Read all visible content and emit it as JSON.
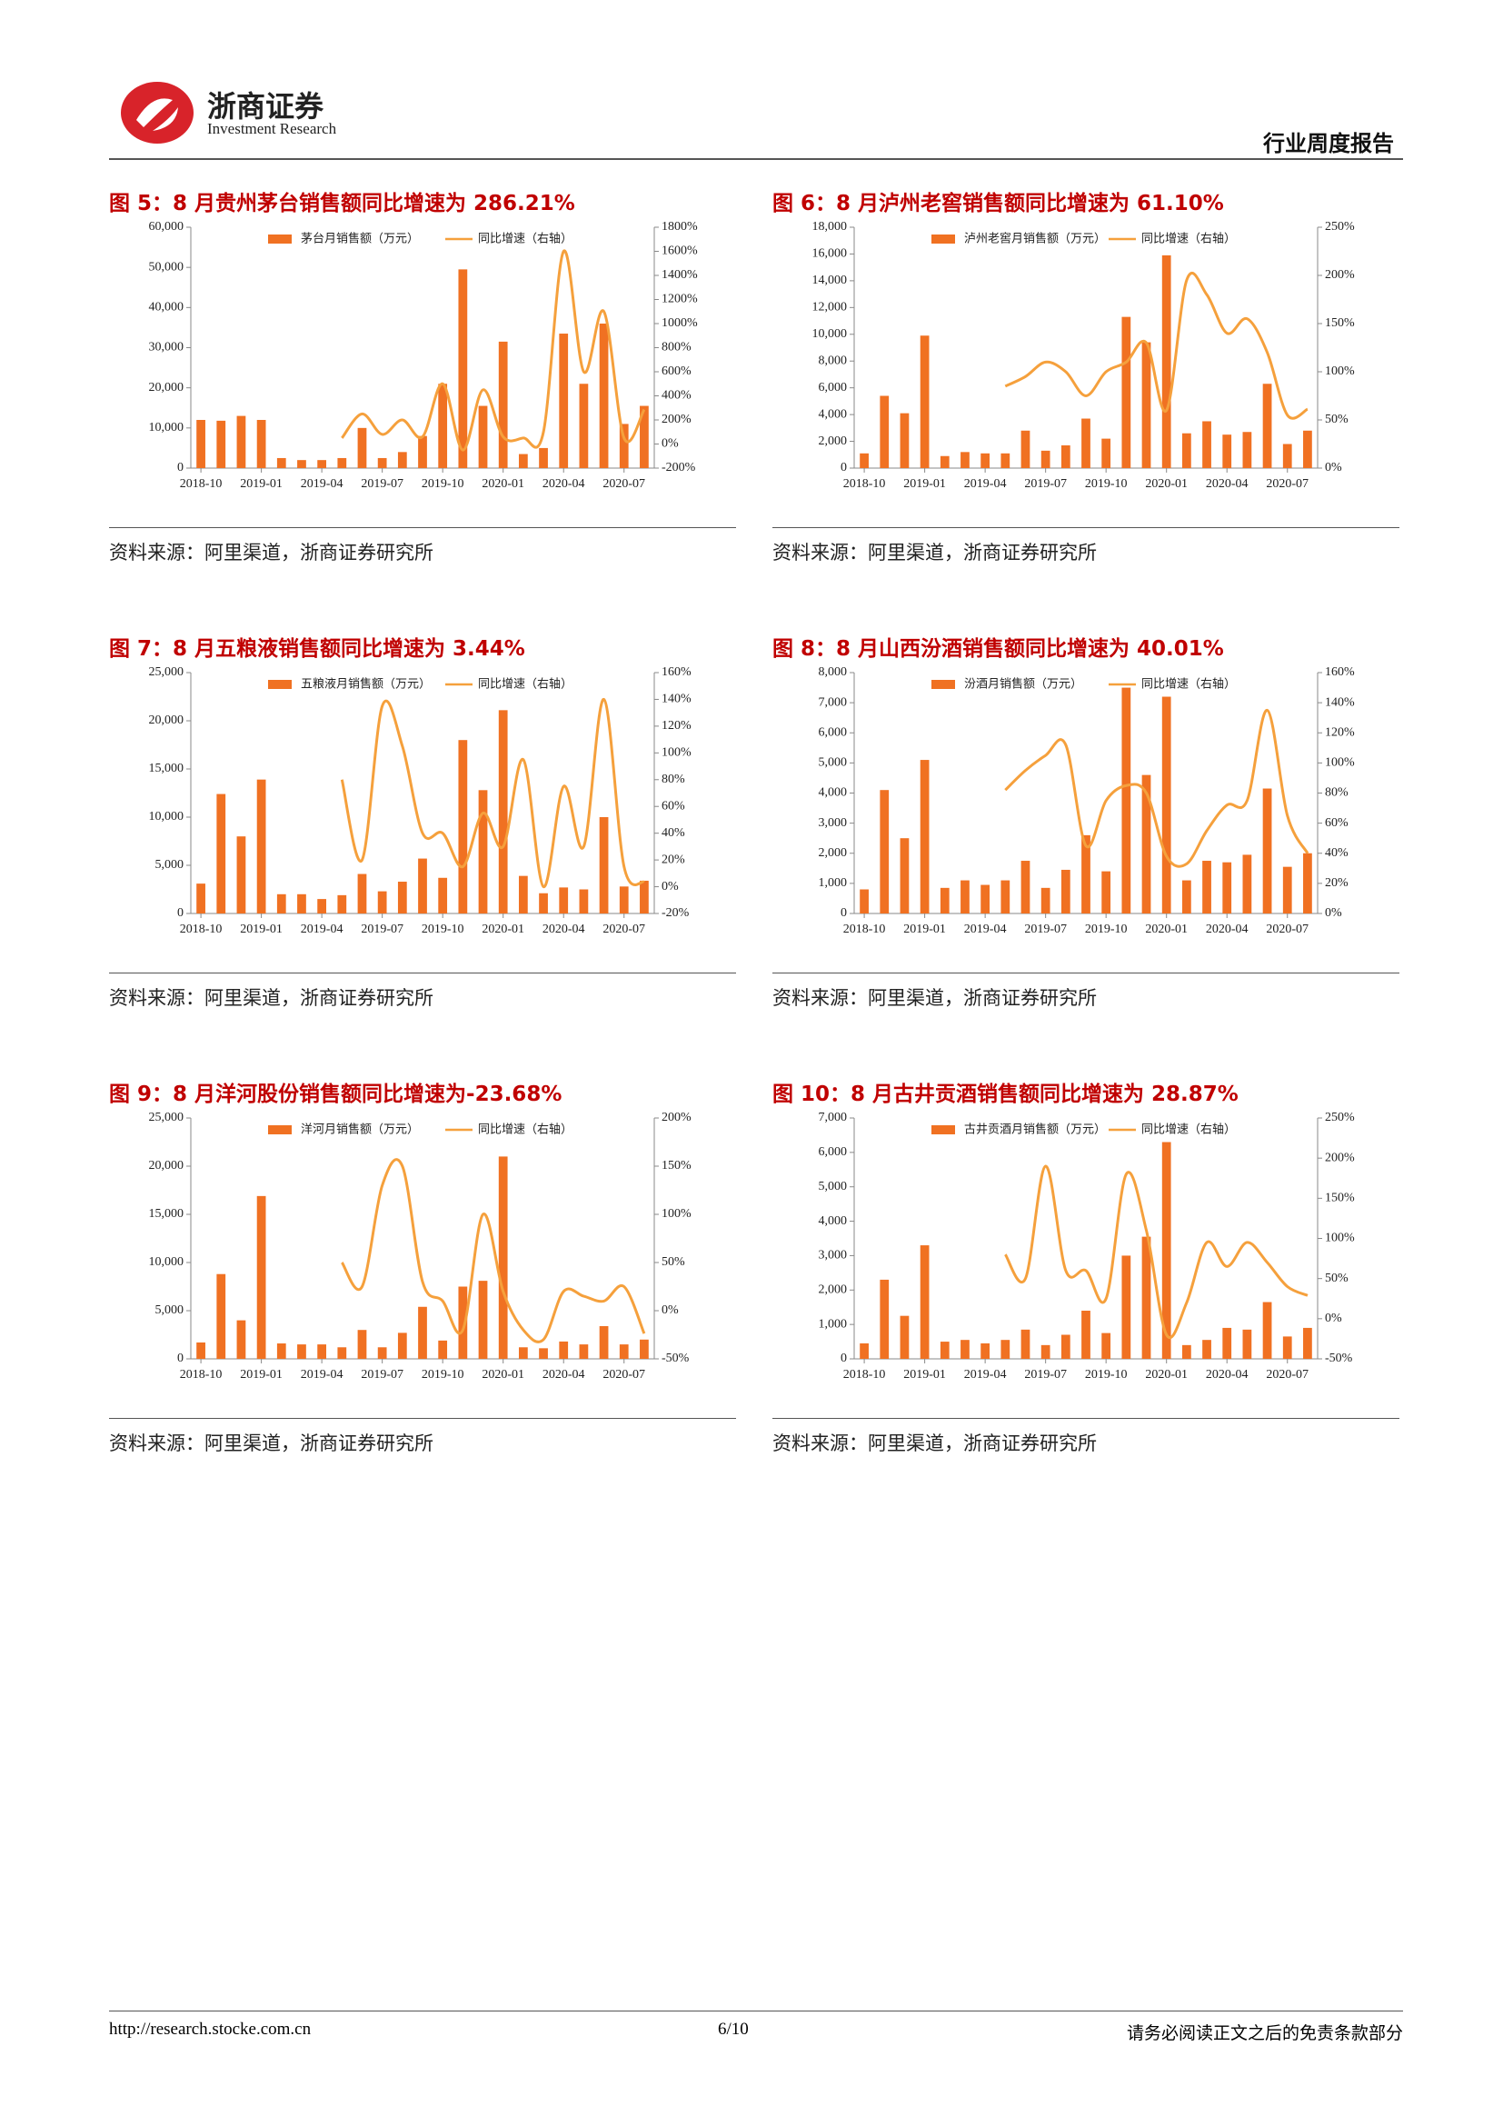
{
  "header": {
    "company": "浙商证券",
    "company_en": "Investment Research",
    "report_type": "行业周度报告"
  },
  "footer": {
    "url": "http://research.stocke.com.cn",
    "page": "6/10",
    "disclaimer": "请务必阅读正文之后的免责条款部分"
  },
  "chart_data": [
    {
      "type": "bar",
      "title": "图 5：8 月贵州茅台销售额同比增速为 286.21%",
      "source": "资料来源：阿里渠道，浙商证券研究所",
      "categories": [
        "2018-10",
        null,
        null,
        "2019-01",
        null,
        null,
        "2019-04",
        null,
        null,
        "2019-07",
        null,
        null,
        "2019-10",
        null,
        null,
        "2020-01",
        null,
        null,
        "2020-04",
        null,
        null,
        "2020-07",
        null
      ],
      "series": [
        {
          "name": "茅台月销售额（万元）",
          "color": "#f07122",
          "values": [
            12000,
            11800,
            13000,
            12000,
            2500,
            2000,
            2000,
            2500,
            10000,
            2500,
            4000,
            8000,
            21000,
            49500,
            15500,
            31500,
            3500,
            5000,
            33500,
            21000,
            36000,
            11000,
            15500
          ]
        },
        {
          "name": "同比增速（右轴）",
          "color": "#f5a03c",
          "axis": "y2",
          "values": [
            null,
            null,
            null,
            null,
            null,
            null,
            null,
            50,
            250,
            80,
            200,
            60,
            500,
            -50,
            450,
            60,
            50,
            100,
            1600,
            600,
            1100,
            50,
            286.21
          ]
        }
      ],
      "ylim": [
        0,
        60000
      ],
      "yticks": [
        0,
        {
          "value": 10000,
          "label": "10,000"
        },
        {
          "value": 20000,
          "label": "20,000"
        },
        {
          "value": 30000,
          "label": "30,000"
        },
        {
          "value": 40000,
          "label": "40,000"
        },
        {
          "value": 50000,
          "label": "50,000"
        },
        {
          "value": 60000,
          "label": "60,000"
        }
      ],
      "y2lim": [
        -200,
        1800
      ],
      "y2ticks": [
        {
          "value": -200,
          "label": "-200%"
        },
        {
          "value": 0,
          "label": "0%"
        },
        {
          "value": 200,
          "label": "200%"
        },
        {
          "value": 400,
          "label": "400%"
        },
        {
          "value": 600,
          "label": "600%"
        },
        {
          "value": 800,
          "label": "800%"
        },
        {
          "value": 1000,
          "label": "1000%"
        },
        {
          "value": 1200,
          "label": "1200%"
        },
        {
          "value": 1400,
          "label": "1400%"
        },
        {
          "value": 1600,
          "label": "1600%"
        },
        {
          "value": 1800,
          "label": "1800%"
        }
      ]
    },
    {
      "type": "bar",
      "title": "图 6：8 月泸州老窖销售额同比增速为 61.10%",
      "source": "资料来源：阿里渠道，浙商证券研究所",
      "categories": [
        "2018-10",
        null,
        null,
        "2019-01",
        null,
        null,
        "2019-04",
        null,
        null,
        "2019-07",
        null,
        null,
        "2019-10",
        null,
        null,
        "2020-01",
        null,
        null,
        "2020-04",
        null,
        null,
        "2020-07",
        null
      ],
      "series": [
        {
          "name": "泸州老窖月销售额（万元）",
          "color": "#f07122",
          "values": [
            1100,
            5400,
            4100,
            9900,
            900,
            1200,
            1100,
            1100,
            2800,
            1300,
            1700,
            3700,
            2200,
            11300,
            9400,
            15900,
            2600,
            3500,
            2500,
            2700,
            6300,
            1800,
            2800
          ]
        },
        {
          "name": "同比增速（右轴）",
          "color": "#f5a03c",
          "axis": "y2",
          "values": [
            null,
            null,
            null,
            null,
            null,
            null,
            null,
            85,
            95,
            110,
            100,
            75,
            100,
            110,
            130,
            60,
            195,
            180,
            140,
            155,
            120,
            55,
            61.1
          ]
        }
      ],
      "ylim": [
        0,
        18000
      ],
      "yticks": [
        0,
        {
          "value": 2000,
          "label": "2,000"
        },
        {
          "value": 4000,
          "label": "4,000"
        },
        {
          "value": 6000,
          "label": "6,000"
        },
        {
          "value": 8000,
          "label": "8,000"
        },
        {
          "value": 10000,
          "label": "10,000"
        },
        {
          "value": 12000,
          "label": "12,000"
        },
        {
          "value": 14000,
          "label": "14,000"
        },
        {
          "value": 16000,
          "label": "16,000"
        },
        {
          "value": 18000,
          "label": "18,000"
        }
      ],
      "y2lim": [
        0,
        250
      ],
      "y2ticks": [
        {
          "value": 0,
          "label": "0%"
        },
        {
          "value": 50,
          "label": "50%"
        },
        {
          "value": 100,
          "label": "100%"
        },
        {
          "value": 150,
          "label": "150%"
        },
        {
          "value": 200,
          "label": "200%"
        },
        {
          "value": 250,
          "label": "250%"
        }
      ]
    },
    {
      "type": "bar",
      "title": "图 7：8 月五粮液销售额同比增速为 3.44%",
      "source": "资料来源：阿里渠道，浙商证券研究所",
      "categories": [
        "2018-10",
        null,
        null,
        "2019-01",
        null,
        null,
        "2019-04",
        null,
        null,
        "2019-07",
        null,
        null,
        "2019-10",
        null,
        null,
        "2020-01",
        null,
        null,
        "2020-04",
        null,
        null,
        "2020-07",
        null
      ],
      "series": [
        {
          "name": "五粮液月销售额（万元）",
          "color": "#f07122",
          "values": [
            3100,
            12400,
            8000,
            13900,
            2000,
            2000,
            1500,
            1900,
            4100,
            2300,
            3300,
            5700,
            3700,
            18000,
            12800,
            21100,
            3900,
            2100,
            2700,
            2500,
            10000,
            2800,
            3400
          ]
        },
        {
          "name": "同比增速（右轴）",
          "color": "#f5a03c",
          "axis": "y2",
          "values": [
            null,
            null,
            null,
            null,
            null,
            null,
            null,
            80,
            20,
            135,
            105,
            40,
            40,
            15,
            55,
            30,
            95,
            0,
            75,
            30,
            140,
            15,
            3.44
          ]
        }
      ],
      "ylim": [
        0,
        25000
      ],
      "yticks": [
        0,
        {
          "value": 5000,
          "label": "5,000"
        },
        {
          "value": 10000,
          "label": "10,000"
        },
        {
          "value": 15000,
          "label": "15,000"
        },
        {
          "value": 20000,
          "label": "20,000"
        },
        {
          "value": 25000,
          "label": "25,000"
        }
      ],
      "y2lim": [
        -20,
        160
      ],
      "y2ticks": [
        {
          "value": -20,
          "label": "-20%"
        },
        {
          "value": 0,
          "label": "0%"
        },
        {
          "value": 20,
          "label": "20%"
        },
        {
          "value": 40,
          "label": "40%"
        },
        {
          "value": 60,
          "label": "60%"
        },
        {
          "value": 80,
          "label": "80%"
        },
        {
          "value": 100,
          "label": "100%"
        },
        {
          "value": 120,
          "label": "120%"
        },
        {
          "value": 140,
          "label": "140%"
        },
        {
          "value": 160,
          "label": "160%"
        }
      ]
    },
    {
      "type": "bar",
      "title": "图 8：8 月山西汾酒销售额同比增速为 40.01%",
      "source": "资料来源：阿里渠道，浙商证券研究所",
      "categories": [
        "2018-10",
        null,
        null,
        "2019-01",
        null,
        null,
        "2019-04",
        null,
        null,
        "2019-07",
        null,
        null,
        "2019-10",
        null,
        null,
        "2020-01",
        null,
        null,
        "2020-04",
        null,
        null,
        "2020-07",
        null
      ],
      "series": [
        {
          "name": "汾酒月销售额（万元）",
          "color": "#f07122",
          "values": [
            800,
            4100,
            2500,
            5100,
            850,
            1100,
            950,
            1100,
            1750,
            850,
            1450,
            2600,
            1400,
            7500,
            4600,
            7200,
            1100,
            1750,
            1700,
            1950,
            4150,
            1550,
            2000
          ]
        },
        {
          "name": "同比增速（右轴）",
          "color": "#f5a03c",
          "axis": "y2",
          "values": [
            null,
            null,
            null,
            null,
            null,
            null,
            null,
            82,
            95,
            105,
            112,
            45,
            75,
            85,
            80,
            38,
            33,
            55,
            72,
            75,
            135,
            65,
            40.01
          ]
        }
      ],
      "ylim": [
        0,
        8000
      ],
      "yticks": [
        0,
        {
          "value": 1000,
          "label": "1,000"
        },
        {
          "value": 2000,
          "label": "2,000"
        },
        {
          "value": 3000,
          "label": "3,000"
        },
        {
          "value": 4000,
          "label": "4,000"
        },
        {
          "value": 5000,
          "label": "5,000"
        },
        {
          "value": 6000,
          "label": "6,000"
        },
        {
          "value": 7000,
          "label": "7,000"
        },
        {
          "value": 8000,
          "label": "8,000"
        }
      ],
      "y2lim": [
        0,
        160
      ],
      "y2ticks": [
        {
          "value": 0,
          "label": "0%"
        },
        {
          "value": 20,
          "label": "20%"
        },
        {
          "value": 40,
          "label": "40%"
        },
        {
          "value": 60,
          "label": "60%"
        },
        {
          "value": 80,
          "label": "80%"
        },
        {
          "value": 100,
          "label": "100%"
        },
        {
          "value": 120,
          "label": "120%"
        },
        {
          "value": 140,
          "label": "140%"
        },
        {
          "value": 160,
          "label": "160%"
        }
      ]
    },
    {
      "type": "bar",
      "title": "图 9：8 月洋河股份销售额同比增速为-23.68%",
      "source": "资料来源：阿里渠道，浙商证券研究所",
      "categories": [
        "2018-10",
        null,
        null,
        "2019-01",
        null,
        null,
        "2019-04",
        null,
        null,
        "2019-07",
        null,
        null,
        "2019-10",
        null,
        null,
        "2020-01",
        null,
        null,
        "2020-04",
        null,
        null,
        "2020-07",
        null
      ],
      "series": [
        {
          "name": "洋河月销售额（万元）",
          "color": "#f07122",
          "values": [
            1700,
            8800,
            4000,
            16900,
            1600,
            1500,
            1500,
            1200,
            3000,
            1200,
            2700,
            5400,
            1900,
            7500,
            8100,
            21000,
            1200,
            1100,
            1800,
            1500,
            3400,
            1500,
            2000
          ]
        },
        {
          "name": "同比增速（右轴）",
          "color": "#f5a03c",
          "axis": "y2",
          "values": [
            null,
            null,
            null,
            null,
            null,
            null,
            null,
            50,
            25,
            130,
            150,
            30,
            10,
            -20,
            100,
            20,
            -20,
            -30,
            20,
            15,
            10,
            25,
            -23.68
          ]
        }
      ],
      "ylim": [
        0,
        25000
      ],
      "yticks": [
        0,
        {
          "value": 5000,
          "label": "5,000"
        },
        {
          "value": 10000,
          "label": "10,000"
        },
        {
          "value": 15000,
          "label": "15,000"
        },
        {
          "value": 20000,
          "label": "20,000"
        },
        {
          "value": 25000,
          "label": "25,000"
        }
      ],
      "y2lim": [
        -50,
        200
      ],
      "y2ticks": [
        {
          "value": -50,
          "label": "-50%"
        },
        {
          "value": 0,
          "label": "0%"
        },
        {
          "value": 50,
          "label": "50%"
        },
        {
          "value": 100,
          "label": "100%"
        },
        {
          "value": 150,
          "label": "150%"
        },
        {
          "value": 200,
          "label": "200%"
        }
      ]
    },
    {
      "type": "bar",
      "title": "图 10：8 月古井贡酒销售额同比增速为 28.87%",
      "source": "资料来源：阿里渠道，浙商证券研究所",
      "categories": [
        "2018-10",
        null,
        null,
        "2019-01",
        null,
        null,
        "2019-04",
        null,
        null,
        "2019-07",
        null,
        null,
        "2019-10",
        null,
        null,
        "2020-01",
        null,
        null,
        "2020-04",
        null,
        null,
        "2020-07",
        null
      ],
      "series": [
        {
          "name": "古井贡酒月销售额（万元）",
          "color": "#f07122",
          "values": [
            450,
            2300,
            1250,
            3300,
            500,
            550,
            450,
            550,
            850,
            400,
            700,
            1400,
            750,
            3000,
            3550,
            6300,
            400,
            550,
            900,
            850,
            1650,
            650,
            900
          ]
        },
        {
          "name": "同比增速（右轴）",
          "color": "#f5a03c",
          "axis": "y2",
          "values": [
            null,
            null,
            null,
            null,
            null,
            null,
            null,
            80,
            50,
            190,
            60,
            60,
            25,
            180,
            110,
            -20,
            20,
            95,
            65,
            95,
            70,
            40,
            28.87
          ]
        }
      ],
      "ylim": [
        0,
        7000
      ],
      "yticks": [
        0,
        {
          "value": 1000,
          "label": "1,000"
        },
        {
          "value": 2000,
          "label": "2,000"
        },
        {
          "value": 3000,
          "label": "3,000"
        },
        {
          "value": 4000,
          "label": "4,000"
        },
        {
          "value": 5000,
          "label": "5,000"
        },
        {
          "value": 6000,
          "label": "6,000"
        },
        {
          "value": 7000,
          "label": "7,000"
        }
      ],
      "y2lim": [
        -50,
        250
      ],
      "y2ticks": [
        {
          "value": -50,
          "label": "-50%"
        },
        {
          "value": 0,
          "label": "0%"
        },
        {
          "value": 50,
          "label": "50%"
        },
        {
          "value": 100,
          "label": "100%"
        },
        {
          "value": 150,
          "label": "150%"
        },
        {
          "value": 200,
          "label": "200%"
        },
        {
          "value": 250,
          "label": "250%"
        }
      ]
    }
  ]
}
